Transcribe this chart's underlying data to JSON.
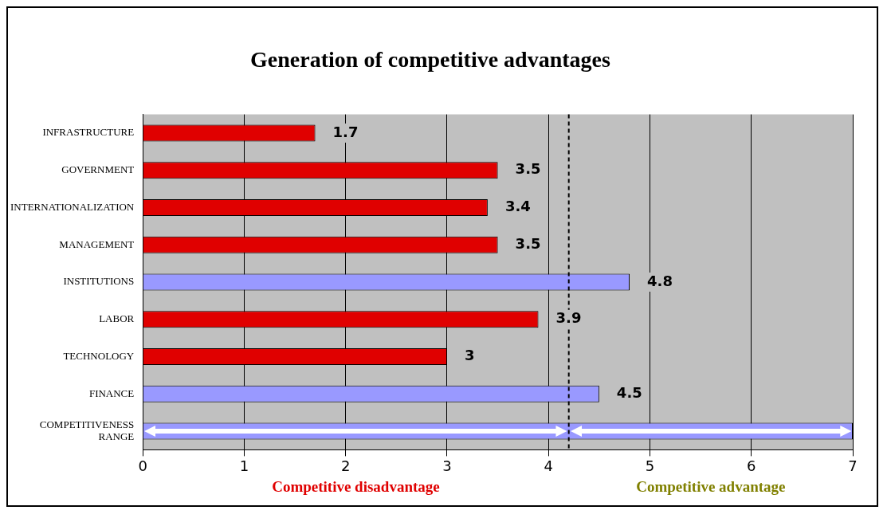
{
  "chart_data": {
    "type": "bar",
    "orientation": "horizontal",
    "title": "Generation of competitive advantages",
    "categories": [
      "INFRASTRUCTURE",
      "GOVERNMENT",
      "INTERNATIONALIZATION",
      "MANAGEMENT",
      "INSTITUTIONS",
      "LABOR",
      "TECHNOLOGY",
      "FINANCE",
      "COMPETITIVENESS RANGE"
    ],
    "values": [
      1.7,
      3.5,
      3.4,
      3.5,
      4.8,
      3.9,
      3,
      4.5,
      7
    ],
    "colors": [
      "#e00000",
      "#e00000",
      "#e00000",
      "#e00000",
      "#9999ff",
      "#e00000",
      "#e00000",
      "#9999ff",
      "#9999ff"
    ],
    "value_labels": [
      "1.7",
      "3.5",
      "3.4",
      "3.5",
      "4.8",
      "3.9",
      "3",
      "4.5",
      null
    ],
    "xlim": [
      0,
      7
    ],
    "xticks": [
      0,
      1,
      2,
      3,
      4,
      5,
      6,
      7
    ],
    "grid": "x",
    "ref_lines": [
      {
        "axis": "x",
        "value": 4.2,
        "line_style": "dashed",
        "color": "#000000"
      }
    ],
    "annotations": [
      "Competitive disadvantage",
      "Competitive advantage"
    ],
    "legend": false
  }
}
